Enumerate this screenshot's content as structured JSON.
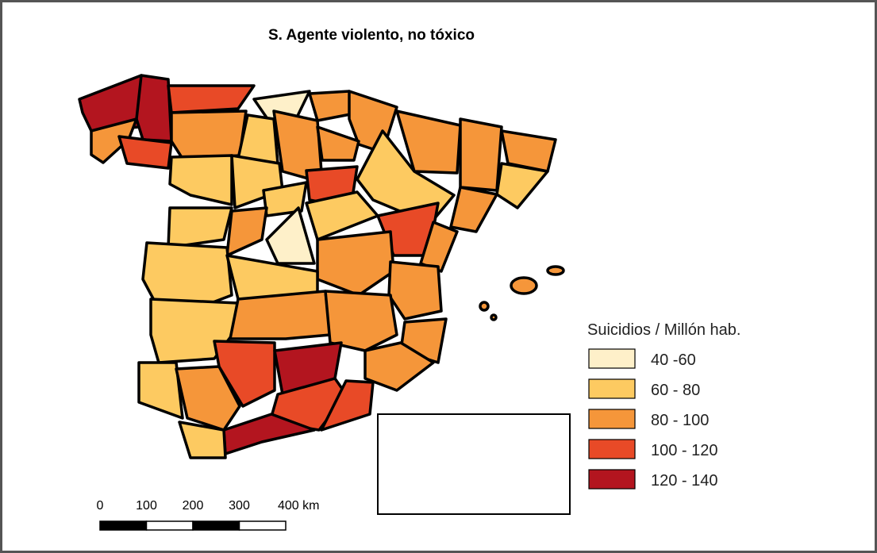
{
  "title": "S. Agente violento, no tóxico",
  "legend": {
    "title": "Suicidios / Millón hab.",
    "items": [
      {
        "label": "40 -60",
        "color": "#fef0c9"
      },
      {
        "label": "60 - 80",
        "color": "#fdca61"
      },
      {
        "label": "80 - 100",
        "color": "#f5963a"
      },
      {
        "label": "100 - 120",
        "color": "#e84a27"
      },
      {
        "label": "120 - 140",
        "color": "#b3151f"
      }
    ]
  },
  "scale_bar": {
    "labels": [
      "0",
      "100",
      "200",
      "300",
      "400 km"
    ]
  }
}
